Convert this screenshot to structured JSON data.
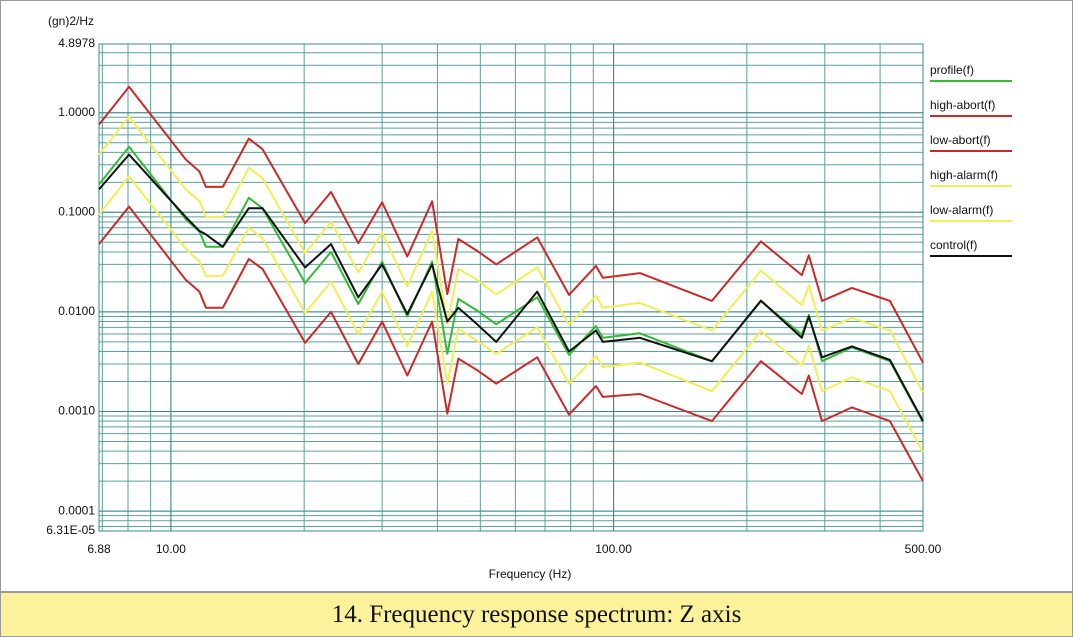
{
  "chart_data": {
    "type": "line",
    "y_label": "(gn)2/Hz",
    "x_label": "Frequency (Hz)",
    "xscale": "log",
    "yscale": "log",
    "grid": true,
    "minor_grid": true,
    "legend": "right",
    "xlim": [
      6.88,
      500
    ],
    "ylim": [
      6.31e-05,
      4.8978
    ],
    "xticks": [
      6.88,
      {
        "value": 10,
        "label": "10.00"
      },
      {
        "value": 100,
        "label": "100.00"
      },
      {
        "value": 500,
        "label": "500.00"
      }
    ],
    "yticks": [
      {
        "value": 6.31e-05,
        "label": "6.31E-05"
      },
      0.0001,
      {
        "value": 0.001,
        "label": "0.0010"
      },
      {
        "value": 0.01,
        "label": "0.0100"
      },
      {
        "value": 0.1,
        "label": "0.1000"
      },
      {
        "value": 1,
        "label": "1.0000"
      },
      4.8978
    ],
    "x": [
      6.88,
      8.04,
      10.8,
      11.6,
      12.0,
      13.1,
      15.0,
      16.1,
      20.1,
      23.0,
      26.5,
      30.0,
      34.2,
      38.9,
      42.1,
      44.6,
      49.2,
      54.3,
      67.2,
      79.3,
      91.2,
      94.6,
      114.7,
      166.8,
      215.2,
      266.2,
      276.1,
      295.6,
      345.4,
      421,
      500
    ],
    "series": [
      {
        "name": "profile(f)",
        "color": "#33bb33",
        "values": [
          0.19,
          0.455,
          0.085,
          0.064,
          0.045,
          0.045,
          0.14,
          0.11,
          0.0195,
          0.04,
          0.012,
          0.032,
          0.009,
          0.032,
          0.0038,
          0.0135,
          0.0103,
          0.0075,
          0.014,
          0.0037,
          0.0072,
          0.0055,
          0.0061,
          0.0032,
          0.0128,
          0.0059,
          0.0093,
          0.0032,
          0.0044,
          0.0032,
          0.00078
        ]
      },
      {
        "name": "high-abort(f)",
        "color": "#cc2a2a",
        "values": [
          0.76,
          1.82,
          0.34,
          0.257,
          0.18,
          0.18,
          0.55,
          0.43,
          0.078,
          0.16,
          0.049,
          0.126,
          0.036,
          0.129,
          0.0151,
          0.054,
          0.041,
          0.03,
          0.056,
          0.0148,
          0.029,
          0.022,
          0.0245,
          0.0129,
          0.051,
          0.0234,
          0.037,
          0.0129,
          0.0174,
          0.0129,
          0.0031
        ]
      },
      {
        "name": "low-abort(f)",
        "color": "#cc2a2a",
        "values": [
          0.048,
          0.114,
          0.021,
          0.016,
          0.011,
          0.011,
          0.034,
          0.027,
          0.0049,
          0.01,
          0.003,
          0.008,
          0.0023,
          0.008,
          0.00095,
          0.0034,
          0.0026,
          0.0019,
          0.0035,
          0.00093,
          0.0018,
          0.0014,
          0.0015,
          0.0008,
          0.0032,
          0.0015,
          0.0023,
          0.0008,
          0.0011,
          0.0008,
          0.0002
        ]
      },
      {
        "name": "high-alarm(f)",
        "color": "#f2ee55",
        "values": [
          0.38,
          0.91,
          0.17,
          0.13,
          0.09,
          0.09,
          0.28,
          0.22,
          0.039,
          0.08,
          0.025,
          0.063,
          0.018,
          0.065,
          0.0076,
          0.027,
          0.021,
          0.015,
          0.028,
          0.0074,
          0.0145,
          0.011,
          0.0123,
          0.0065,
          0.026,
          0.0117,
          0.0185,
          0.0065,
          0.0087,
          0.0065,
          0.00155
        ]
      },
      {
        "name": "low-alarm(f)",
        "color": "#f2ee55",
        "values": [
          0.095,
          0.23,
          0.043,
          0.032,
          0.023,
          0.023,
          0.07,
          0.055,
          0.0098,
          0.02,
          0.006,
          0.016,
          0.0045,
          0.016,
          0.0019,
          0.0068,
          0.0051,
          0.0038,
          0.007,
          0.0019,
          0.0036,
          0.0028,
          0.0031,
          0.0016,
          0.0064,
          0.0029,
          0.0046,
          0.0016,
          0.0022,
          0.0016,
          0.00039
        ]
      },
      {
        "name": "control(f)",
        "color": "#111111",
        "values": [
          0.17,
          0.38,
          0.09,
          0.065,
          0.06,
          0.045,
          0.11,
          0.11,
          0.028,
          0.048,
          0.014,
          0.03,
          0.0095,
          0.03,
          0.008,
          0.011,
          0.0075,
          0.005,
          0.016,
          0.004,
          0.0065,
          0.005,
          0.0055,
          0.0032,
          0.013,
          0.0055,
          0.009,
          0.0035,
          0.0045,
          0.0033,
          0.0008
        ]
      }
    ]
  },
  "caption": "14. Frequency response spectrum: Z axis"
}
